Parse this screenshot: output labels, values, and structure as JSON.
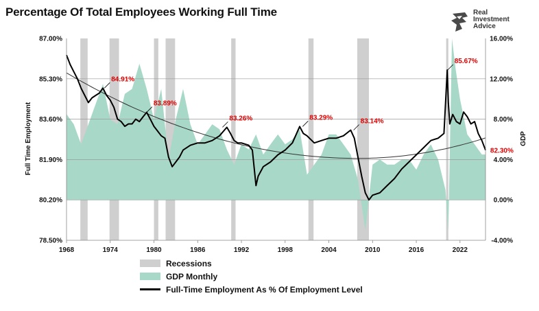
{
  "header": {
    "title": "Percentage Of Total Employees Working Full Time",
    "logo_lines": [
      "Real",
      "Investment",
      "Advice"
    ]
  },
  "colors": {
    "employment_line": "#000000",
    "gdp_fill": "#a8d8c8",
    "recession_bar": "#cfcfcf",
    "annotation": "#e00000",
    "trend_line": "#333333",
    "grid": "#9a9a9a"
  },
  "legend": {
    "recessions": "Recessions",
    "gdp": "GDP Monthly",
    "employment": "Full-Time Employment As % Of Employment Level"
  },
  "chart_data": {
    "type": "line",
    "title": "Percentage Of Total Employees Working Full Time",
    "ylabel": "Full Time Employment",
    "y2label": "GDP",
    "xlim": [
      1968,
      2025.5
    ],
    "ylim": [
      78.5,
      87.0
    ],
    "y2lim": [
      -4,
      16
    ],
    "x_ticks": [
      "1968",
      "1974",
      "1980",
      "1986",
      "1992",
      "1998",
      "2004",
      "2010",
      "2016",
      "2022"
    ],
    "y_ticks": [
      "87.00%",
      "85.30%",
      "83.60%",
      "81.90%",
      "80.20%",
      "78.50%"
    ],
    "y2_ticks": [
      "16.00%",
      "12.00%",
      "8.00%",
      "4.00%",
      "0.00%",
      "-4.00%"
    ],
    "grid": "horizontal",
    "legend_position": "bottom",
    "recessions": [
      [
        1969.9,
        1970.9
      ],
      [
        1973.9,
        1975.2
      ],
      [
        1980.0,
        1980.6
      ],
      [
        1981.6,
        1982.9
      ],
      [
        1990.6,
        1991.2
      ],
      [
        2001.2,
        2001.9
      ],
      [
        2007.9,
        2009.5
      ],
      [
        2020.1,
        2020.4
      ]
    ],
    "annotations": [
      {
        "x": 1973.2,
        "y": 84.91,
        "label": "84.91%"
      },
      {
        "x": 1979.0,
        "y": 83.89,
        "label": "83.89%"
      },
      {
        "x": 1989.4,
        "y": 83.26,
        "label": "83.26%"
      },
      {
        "x": 2000.4,
        "y": 83.29,
        "label": "83.29%"
      },
      {
        "x": 2007.4,
        "y": 83.14,
        "label": "83.14%"
      },
      {
        "x": 2020.3,
        "y": 85.67,
        "label": "85.67%"
      },
      {
        "x": 2025.4,
        "y": 82.3,
        "label": "82.30%"
      }
    ],
    "series": [
      {
        "name": "Full-Time Employment As % Of Employment Level",
        "type": "line",
        "axis": "left",
        "x": [
          1968.0,
          1968.5,
          1969.0,
          1969.5,
          1970.0,
          1970.5,
          1971.0,
          1971.5,
          1972.0,
          1972.5,
          1973.0,
          1973.5,
          1974.0,
          1974.5,
          1975.0,
          1975.5,
          1976.0,
          1976.5,
          1977.0,
          1977.5,
          1978.0,
          1978.5,
          1979.0,
          1979.5,
          1980.0,
          1980.5,
          1981.0,
          1981.5,
          1982.0,
          1982.5,
          1983.0,
          1983.5,
          1984.0,
          1985.0,
          1986.0,
          1987.0,
          1988.0,
          1989.0,
          1990.0,
          1990.5,
          1991.0,
          1991.5,
          1992.0,
          1993.0,
          1993.5,
          1994.0,
          1994.3,
          1995.0,
          1996.0,
          1997.0,
          1998.0,
          1999.0,
          2000.0,
          2000.5,
          2001.0,
          2002.0,
          2003.0,
          2004.0,
          2005.0,
          2006.0,
          2007.0,
          2007.5,
          2008.0,
          2008.5,
          2009.0,
          2009.5,
          2010.0,
          2011.0,
          2012.0,
          2013.0,
          2014.0,
          2015.0,
          2016.0,
          2017.0,
          2018.0,
          2019.0,
          2019.8,
          2020.25,
          2020.4,
          2020.6,
          2021.0,
          2021.5,
          2022.0,
          2022.5,
          2023.0,
          2023.5,
          2024.0,
          2024.5,
          2025.0,
          2025.5
        ],
        "values": [
          86.3,
          85.9,
          85.6,
          85.3,
          84.9,
          84.6,
          84.3,
          84.5,
          84.6,
          84.7,
          84.91,
          84.6,
          84.4,
          84.1,
          83.6,
          83.5,
          83.3,
          83.4,
          83.4,
          83.6,
          83.5,
          83.7,
          83.89,
          83.6,
          83.3,
          83.1,
          82.9,
          82.8,
          82.0,
          81.6,
          81.8,
          82.0,
          82.3,
          82.5,
          82.6,
          82.6,
          82.7,
          82.9,
          83.26,
          83.0,
          82.7,
          82.6,
          82.6,
          82.5,
          82.3,
          80.8,
          81.2,
          81.6,
          81.8,
          82.1,
          82.3,
          82.6,
          83.29,
          83.0,
          82.9,
          82.6,
          82.7,
          82.8,
          82.8,
          82.9,
          83.14,
          82.8,
          82.0,
          81.2,
          80.5,
          80.2,
          80.4,
          80.5,
          80.8,
          81.1,
          81.5,
          81.8,
          82.1,
          82.4,
          82.7,
          82.8,
          83.0,
          85.67,
          84.3,
          83.4,
          83.8,
          83.5,
          83.4,
          83.9,
          83.7,
          83.4,
          83.5,
          83.0,
          82.7,
          82.3
        ]
      },
      {
        "name": "GDP Monthly",
        "type": "area",
        "axis": "right",
        "x": [
          1968,
          1969,
          1970,
          1971,
          1972,
          1973,
          1974,
          1975,
          1976,
          1977,
          1978,
          1979,
          1980,
          1981,
          1982,
          1983,
          1984,
          1985,
          1986,
          1987,
          1988,
          1989,
          1990,
          1991,
          1992,
          1993,
          1994,
          1995,
          1996,
          1997,
          1998,
          1999,
          2000,
          2001,
          2002,
          2003,
          2004,
          2005,
          2006,
          2007,
          2008,
          2009,
          2010,
          2011,
          2012,
          2013,
          2014,
          2015,
          2016,
          2017,
          2018,
          2019,
          2020.0,
          2020.4,
          2020.9,
          2021.4,
          2022,
          2023,
          2024,
          2025,
          2025.5
        ],
        "values": [
          8.5,
          7.5,
          5.5,
          7.5,
          9.5,
          11.5,
          8.0,
          7.5,
          10.5,
          11.0,
          13.5,
          11.0,
          8.0,
          11.0,
          4.0,
          8.0,
          11.0,
          7.5,
          5.5,
          6.5,
          7.5,
          7.0,
          5.0,
          3.5,
          5.5,
          5.0,
          6.5,
          4.5,
          5.5,
          6.5,
          5.5,
          6.0,
          7.0,
          2.5,
          3.5,
          4.5,
          6.5,
          6.5,
          5.5,
          4.5,
          2.0,
          -3.0,
          3.5,
          4.0,
          3.5,
          3.5,
          4.0,
          4.0,
          3.0,
          4.5,
          5.5,
          4.0,
          1.0,
          -3.0,
          18.0,
          13.0,
          10.0,
          6.5,
          5.5,
          4.5,
          4.5
        ]
      }
    ]
  }
}
